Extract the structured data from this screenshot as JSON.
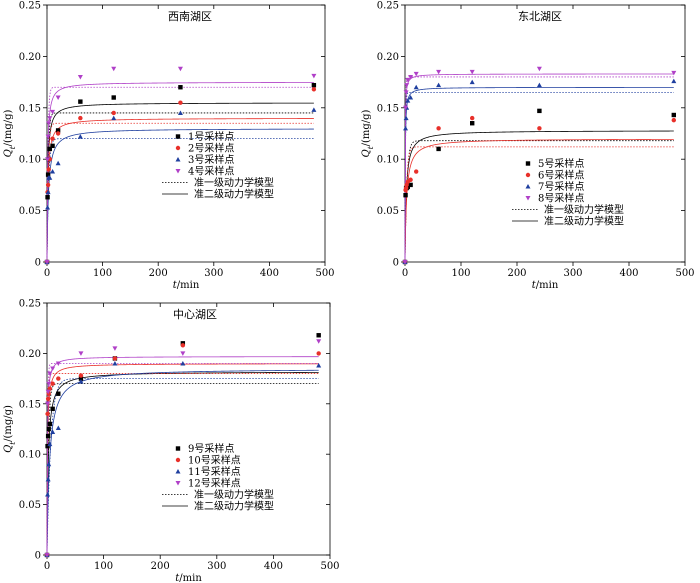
{
  "chart_data": [
    {
      "type": "scatter",
      "title": "西南湖区",
      "ylabel": "Q_t/(mg/g)",
      "xlabel": "t/min",
      "xlim": [
        0,
        500
      ],
      "ylim": [
        0,
        0.25
      ],
      "xticks": [
        "0",
        "100",
        "200",
        "300",
        "400",
        "500"
      ],
      "yticks": [
        "0",
        "0.05",
        "0.10",
        "0.15",
        "0.20",
        "0.25"
      ],
      "legend_position": "center",
      "series": [
        {
          "name": "1号采样点",
          "marker": "square",
          "color": "#000000",
          "x": [
            0,
            1,
            2,
            3,
            5,
            10,
            20,
            60,
            120,
            240,
            480
          ],
          "y": [
            0,
            0.063,
            0.085,
            0.1,
            0.11,
            0.113,
            0.128,
            0.156,
            0.16,
            0.17,
            0.172
          ],
          "pfo": {
            "qe": 0.145,
            "k": 0.5
          },
          "pso": {
            "qe": 0.155,
            "k": 5.0
          }
        },
        {
          "name": "2号采样点",
          "marker": "circle",
          "color": "#e8302a",
          "x": [
            0,
            1,
            2,
            3,
            5,
            10,
            20,
            60,
            120,
            240,
            480
          ],
          "y": [
            0,
            0.068,
            0.075,
            0.09,
            0.1,
            0.12,
            0.125,
            0.14,
            0.145,
            0.155,
            0.168
          ],
          "pfo": {
            "qe": 0.135,
            "k": 0.45
          },
          "pso": {
            "qe": 0.14,
            "k": 4.5
          }
        },
        {
          "name": "3号采样点",
          "marker": "triangle-up",
          "color": "#1f3f9f",
          "x": [
            0,
            1,
            2,
            3,
            5,
            10,
            20,
            60,
            120,
            240,
            480
          ],
          "y": [
            0,
            0.053,
            0.068,
            0.082,
            0.082,
            0.088,
            0.096,
            0.122,
            0.14,
            0.145,
            0.148
          ],
          "pfo": {
            "qe": 0.12,
            "k": 0.35
          },
          "pso": {
            "qe": 0.13,
            "k": 3.0
          }
        },
        {
          "name": "4号采样点",
          "marker": "triangle-down",
          "color": "#b040c8",
          "x": [
            0,
            1,
            2,
            3,
            5,
            10,
            20,
            60,
            120,
            240,
            480
          ],
          "y": [
            0,
            0.1,
            0.122,
            0.135,
            0.14,
            0.146,
            0.16,
            0.18,
            0.188,
            0.188,
            0.181
          ],
          "pfo": {
            "qe": 0.17,
            "k": 0.6
          },
          "pso": {
            "qe": 0.175,
            "k": 5.5
          }
        }
      ],
      "legend_models": [
        "准一级动力学模型",
        "准二级动力学模型"
      ]
    },
    {
      "type": "scatter",
      "title": "东北湖区",
      "ylabel": "Q_t/(mg/g)",
      "xlabel": "t/min",
      "xlim": [
        0,
        500
      ],
      "ylim": [
        0,
        0.25
      ],
      "xticks": [
        "0",
        "100",
        "200",
        "300",
        "400",
        "500"
      ],
      "yticks": [
        "0",
        "0.05",
        "0.10",
        "0.15",
        "0.20",
        "0.25"
      ],
      "legend_position": "center-right",
      "series": [
        {
          "name": "5号采样点",
          "marker": "square",
          "color": "#000000",
          "x": [
            0,
            1,
            2,
            3,
            5,
            10,
            60,
            120,
            240,
            480
          ],
          "y": [
            0,
            0.065,
            0.072,
            0.072,
            0.073,
            0.075,
            0.11,
            0.135,
            0.147,
            0.143
          ],
          "pfo": {
            "qe": 0.118,
            "k": 0.3
          },
          "pso": {
            "qe": 0.128,
            "k": 3.5
          }
        },
        {
          "name": "6号采样点",
          "marker": "circle",
          "color": "#e8302a",
          "x": [
            0,
            1,
            2,
            3,
            5,
            10,
            20,
            60,
            120,
            240,
            480
          ],
          "y": [
            0,
            0.07,
            0.072,
            0.075,
            0.078,
            0.08,
            0.088,
            0.13,
            0.14,
            0.13,
            0.138
          ],
          "pfo": {
            "qe": 0.112,
            "k": 0.35
          },
          "pso": {
            "qe": 0.12,
            "k": 3.0
          }
        },
        {
          "name": "7号采样点",
          "marker": "triangle-up",
          "color": "#1f3f9f",
          "x": [
            0,
            1,
            2,
            3,
            5,
            10,
            20,
            60,
            120,
            240,
            480
          ],
          "y": [
            0,
            0.13,
            0.14,
            0.15,
            0.157,
            0.16,
            0.17,
            0.172,
            0.175,
            0.172,
            0.176
          ],
          "pfo": {
            "qe": 0.165,
            "k": 1.2
          },
          "pso": {
            "qe": 0.17,
            "k": 15.0
          }
        },
        {
          "name": "8号采样点",
          "marker": "triangle-down",
          "color": "#b040c8",
          "x": [
            0,
            1,
            2,
            3,
            5,
            10,
            20,
            60,
            120,
            240,
            480
          ],
          "y": [
            0,
            0.15,
            0.165,
            0.172,
            0.177,
            0.18,
            0.183,
            0.185,
            0.185,
            0.188,
            0.184
          ],
          "pfo": {
            "qe": 0.18,
            "k": 1.5
          },
          "pso": {
            "qe": 0.183,
            "k": 20.0
          }
        }
      ],
      "legend_models": [
        "准一级动力学模型",
        "准二级动力学模型"
      ]
    },
    {
      "type": "scatter",
      "title": "中心湖区",
      "ylabel": "Q_t/(mg/g)",
      "xlabel": "t/min",
      "xlim": [
        0,
        500
      ],
      "ylim": [
        0,
        0.25
      ],
      "xticks": [
        "0",
        "100",
        "200",
        "300",
        "400",
        "500"
      ],
      "yticks": [
        "0",
        "0.05",
        "0.10",
        "0.15",
        "0.20",
        "0.25"
      ],
      "legend_position": "lower-center",
      "series": [
        {
          "name": "9号采样点",
          "marker": "square",
          "color": "#000000",
          "x": [
            0,
            1,
            2,
            3,
            5,
            10,
            20,
            60,
            120,
            240,
            480
          ],
          "y": [
            0,
            0.108,
            0.118,
            0.125,
            0.13,
            0.145,
            0.16,
            0.175,
            0.195,
            0.21,
            0.218
          ],
          "pfo": {
            "qe": 0.17,
            "k": 0.4
          },
          "pso": {
            "qe": 0.182,
            "k": 2.5
          }
        },
        {
          "name": "10号采样点",
          "marker": "circle",
          "color": "#e8302a",
          "x": [
            0,
            1,
            2,
            3,
            5,
            10,
            20,
            60,
            120,
            240,
            480
          ],
          "y": [
            0,
            0.14,
            0.155,
            0.16,
            0.165,
            0.17,
            0.175,
            0.178,
            0.195,
            0.208,
            0.2
          ],
          "pfo": {
            "qe": 0.18,
            "k": 0.8
          },
          "pso": {
            "qe": 0.19,
            "k": 6.0
          }
        },
        {
          "name": "11号采样点",
          "marker": "triangle-up",
          "color": "#1f3f9f",
          "x": [
            0,
            1,
            2,
            3,
            5,
            10,
            20,
            60,
            120,
            240,
            480
          ],
          "y": [
            0,
            0.06,
            0.075,
            0.09,
            0.11,
            0.122,
            0.126,
            0.172,
            0.19,
            0.19,
            0.188
          ],
          "pfo": {
            "qe": 0.175,
            "k": 0.15
          },
          "pso": {
            "qe": 0.185,
            "k": 1.2
          }
        },
        {
          "name": "12号采样点",
          "marker": "triangle-down",
          "color": "#b040c8",
          "x": [
            0,
            1,
            2,
            3,
            5,
            10,
            20,
            60,
            120,
            240,
            480
          ],
          "y": [
            0,
            0.15,
            0.162,
            0.17,
            0.18,
            0.185,
            0.19,
            0.2,
            0.205,
            0.2,
            0.212
          ],
          "pfo": {
            "qe": 0.19,
            "k": 1.0
          },
          "pso": {
            "qe": 0.197,
            "k": 8.0
          }
        }
      ],
      "legend_models": [
        "准一级动力学模型",
        "准二级动力学模型"
      ]
    }
  ]
}
